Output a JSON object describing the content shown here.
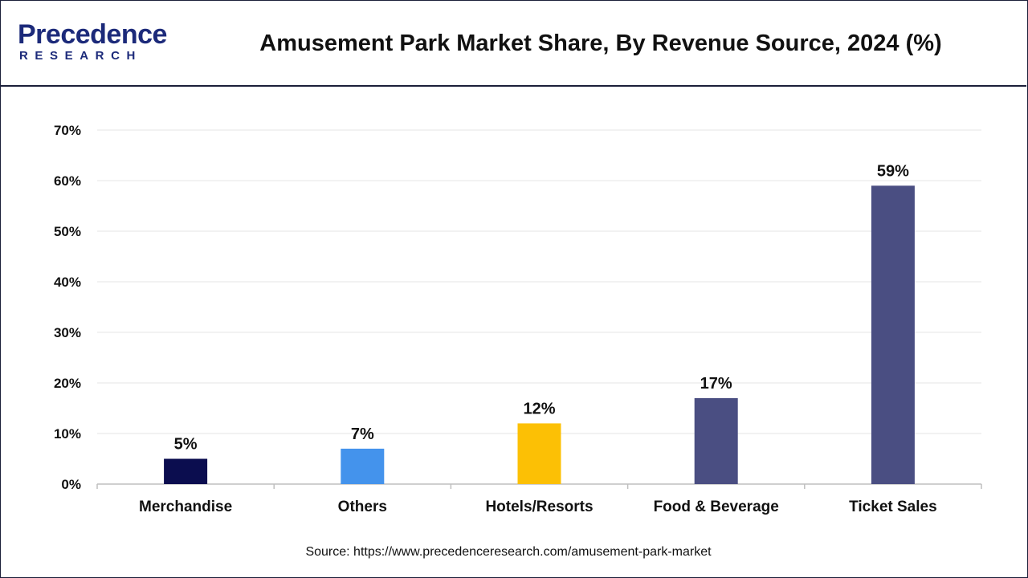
{
  "brand": {
    "name": "Precedence",
    "sub": "RESEARCH"
  },
  "colors": {
    "navy": "#0b0d4f",
    "blue": "#4493ec",
    "gold": "#fcc005",
    "slate": "#4a4e82"
  },
  "chart_data": {
    "type": "bar",
    "title": "Amusement Park Market Share, By Revenue Source, 2024 (%)",
    "categories": [
      "Merchandise",
      "Others",
      "Hotels/Resorts",
      "Food & Beverage",
      "Ticket Sales"
    ],
    "values": [
      5,
      7,
      12,
      17,
      59
    ],
    "data_labels": [
      "5%",
      "7%",
      "12%",
      "17%",
      "59%"
    ],
    "bar_colors": [
      "#0b0d4f",
      "#4493ec",
      "#fcc005",
      "#4a4e82",
      "#4a4e82"
    ],
    "ylim": [
      0,
      70
    ],
    "yticks": [
      0,
      10,
      20,
      30,
      40,
      50,
      60,
      70
    ],
    "ytick_labels": [
      "0%",
      "10%",
      "20%",
      "30%",
      "40%",
      "50%",
      "60%",
      "70%"
    ],
    "xlabel": "",
    "ylabel": "",
    "grid": true,
    "legend": "none"
  },
  "source": "Source: https://www.precedenceresearch.com/amusement-park-market"
}
